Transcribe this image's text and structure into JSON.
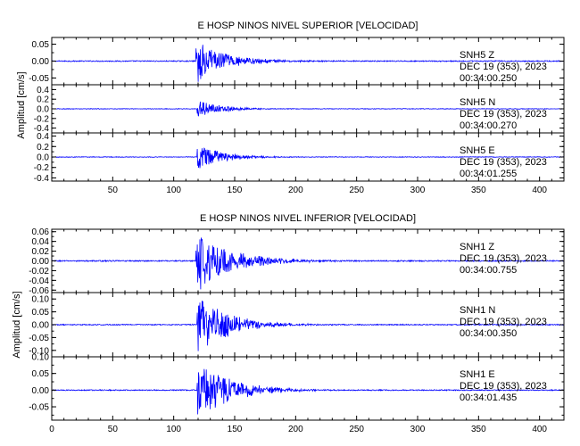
{
  "chart_data": [
    {
      "type": "line",
      "title": "E HOSP NINOS NIVEL SUPERIOR [VELOCIDAD]",
      "ylabel": "Amplitud [cm/s]",
      "xlim": [
        0,
        420
      ],
      "x_ticks": [
        50,
        100,
        150,
        200,
        250,
        300,
        350,
        400
      ],
      "x_tick_labels": [
        "50",
        "100",
        "150",
        "200",
        "250",
        "300",
        "350",
        "400"
      ],
      "series_color": "#0000ff",
      "traces": [
        {
          "station": "SNH5",
          "component": "Z",
          "date": "DEC 19 (353), 2023",
          "time": "00:34:00.250",
          "ylim": [
            -0.07,
            0.07
          ],
          "y_ticks": [
            "0.05",
            "0.00",
            "-0.05"
          ],
          "y_tick_values": [
            0.05,
            0,
            -0.05
          ],
          "onset_s": 118,
          "peak_amplitude": 0.062,
          "decay_s": 22,
          "noise_level": 0.0015
        },
        {
          "station": "SNH5",
          "component": "N",
          "date": "DEC 19 (353), 2023",
          "time": "00:34:00.270",
          "ylim": [
            -0.5,
            0.5
          ],
          "y_ticks": [
            "0.4",
            "0.2",
            "0.0",
            "-0.2",
            "-0.4"
          ],
          "y_tick_values": [
            0.4,
            0.2,
            0,
            -0.2,
            -0.4
          ],
          "onset_s": 119,
          "peak_amplitude": 0.18,
          "decay_s": 18,
          "noise_level": 0.006
        },
        {
          "station": "SNH5",
          "component": "E",
          "date": "DEC 19 (353), 2023",
          "time": "00:34:01.255",
          "ylim": [
            -0.46,
            0.46
          ],
          "y_ticks": [
            "0.4",
            "0.2",
            "0.0",
            "-0.2",
            "-0.4"
          ],
          "y_tick_values": [
            0.4,
            0.2,
            0,
            -0.2,
            -0.4
          ],
          "onset_s": 119,
          "peak_amplitude": 0.27,
          "decay_s": 18,
          "noise_level": 0.006
        }
      ]
    },
    {
      "type": "line",
      "title": "E HOSP NINOS NIVEL INFERIOR [VELOCIDAD]",
      "ylabel": "Amplitud [cm/s]",
      "xlim": [
        0,
        420
      ],
      "x_ticks": [
        0,
        50,
        100,
        150,
        200,
        250,
        300,
        350,
        400
      ],
      "x_tick_labels": [
        "0",
        "50",
        "100",
        "150",
        "200",
        "250",
        "300",
        "350",
        "400"
      ],
      "series_color": "#0000ff",
      "traces": [
        {
          "station": "SNH1",
          "component": "Z",
          "date": "DEC 19 (353), 2023",
          "time": "00:34:00.755",
          "ylim": [
            -0.065,
            0.065
          ],
          "y_ticks": [
            "0.06",
            "0.04",
            "0.02",
            "0.00",
            "-0.02",
            "-0.04",
            "-0.06"
          ],
          "y_tick_values": [
            0.06,
            0.04,
            0.02,
            0,
            -0.02,
            -0.04,
            -0.06
          ],
          "onset_s": 118,
          "peak_amplitude": 0.063,
          "decay_s": 26,
          "noise_level": 0.0012
        },
        {
          "station": "SNH1",
          "component": "N",
          "date": "DEC 19 (353), 2023",
          "time": "00:34:00.350",
          "ylim": [
            -0.125,
            0.125
          ],
          "y_ticks": [
            "0.10",
            "0.05",
            "0.00",
            "-0.05",
            "-0.10"
          ],
          "y_tick_values": [
            0.1,
            0.05,
            0,
            -0.05,
            -0.1
          ],
          "onset_s": 119,
          "peak_amplitude": 0.12,
          "decay_s": 22,
          "noise_level": 0.002
        },
        {
          "station": "SNH1",
          "component": "E",
          "date": "DEC 19 (353), 2023",
          "time": "00:34:01.435",
          "ylim": [
            -0.09,
            0.1
          ],
          "y_ticks": [
            "0.10",
            "0.05",
            "0.00",
            "-0.05"
          ],
          "y_tick_values": [
            0.1,
            0.05,
            0,
            -0.05
          ],
          "onset_s": 119,
          "peak_amplitude": 0.09,
          "decay_s": 24,
          "noise_level": 0.0015
        }
      ]
    }
  ]
}
